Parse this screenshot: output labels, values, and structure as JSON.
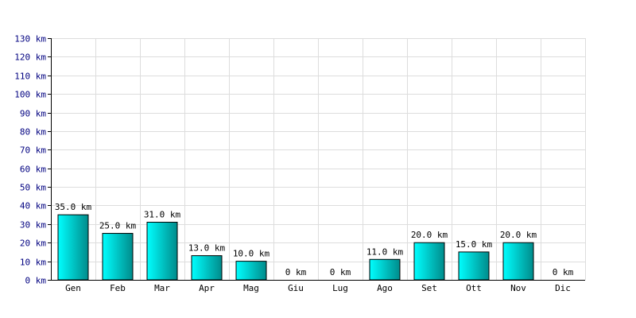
{
  "chart_data": {
    "type": "bar",
    "title": "",
    "xlabel": "",
    "ylabel": "",
    "categories": [
      "Gen",
      "Feb",
      "Mar",
      "Apr",
      "Mag",
      "Giu",
      "Lug",
      "Ago",
      "Set",
      "Ott",
      "Nov",
      "Dic"
    ],
    "values": [
      35,
      25,
      31,
      13,
      10,
      0,
      0,
      11,
      20,
      15,
      20,
      0
    ],
    "value_labels": [
      "35.0 km",
      "25.0 km",
      "31.0 km",
      "13.0 km",
      "10.0 km",
      "0 km",
      "0 km",
      "11.0 km",
      "20.0 km",
      "15.0 km",
      "20.0 km",
      "0 km"
    ],
    "ylim": [
      0,
      130
    ],
    "y_ticks": [
      "0 km",
      "10 km",
      "20 km",
      "30 km",
      "40 km",
      "50 km",
      "60 km",
      "70 km",
      "80 km",
      "90 km",
      "100 km",
      "110 km",
      "120 km",
      "130 km"
    ],
    "y_tick_values": [
      0,
      10,
      20,
      30,
      40,
      50,
      60,
      70,
      80,
      90,
      100,
      110,
      120,
      130
    ],
    "grid": true,
    "legend": "none",
    "colors": {
      "bar_light": "#00ffff",
      "bar_dark": "#008b8b",
      "bar_outline": "#000000",
      "grid": "#dddddd",
      "y_tick_text": "#000080",
      "axis": "#000000"
    }
  }
}
